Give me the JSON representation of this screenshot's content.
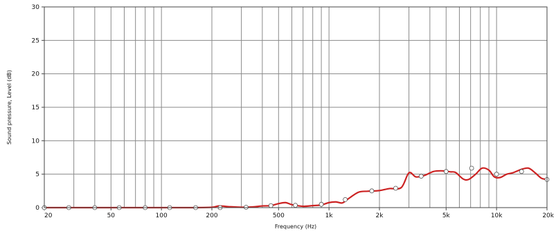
{
  "chart_data": {
    "type": "line",
    "xscale": "log",
    "xlabel": "Frequency  (Hz)",
    "ylabel": "Sound pressure, Level  (dB)",
    "xlim": [
      20,
      20000
    ],
    "ylim": [
      0,
      30
    ],
    "grid": true,
    "x_ticks": [
      {
        "value": 20,
        "label": "20"
      },
      {
        "value": 50,
        "label": "50"
      },
      {
        "value": 100,
        "label": "100"
      },
      {
        "value": 200,
        "label": "200"
      },
      {
        "value": 500,
        "label": "500"
      },
      {
        "value": 1000,
        "label": "1k"
      },
      {
        "value": 2000,
        "label": "2k"
      },
      {
        "value": 5000,
        "label": "5k"
      },
      {
        "value": 10000,
        "label": "10k"
      },
      {
        "value": 20000,
        "label": "20k"
      }
    ],
    "y_ticks": [
      0,
      5,
      10,
      15,
      20,
      25,
      30
    ],
    "series": [
      {
        "color": "#cc2222",
        "marker_color": "#ffffff",
        "x": [
          20,
          25,
          30,
          40,
          50,
          60,
          80,
          100,
          150,
          200,
          220,
          250,
          300,
          350,
          400,
          450,
          500,
          550,
          600,
          700,
          800,
          900,
          1000,
          1100,
          1200,
          1300,
          1500,
          1700,
          2000,
          2300,
          2700,
          3000,
          3300,
          3700,
          4200,
          4700,
          5300,
          5700,
          6300,
          6800,
          7500,
          8200,
          9000,
          9700,
          10500,
          11500,
          12500,
          14000,
          15500,
          17000,
          18500,
          20000
        ],
        "values": [
          0,
          0,
          0,
          0,
          0,
          0,
          0,
          0,
          0,
          0.05,
          0.25,
          0.15,
          0.05,
          0.1,
          0.25,
          0.3,
          0.6,
          0.75,
          0.45,
          0.2,
          0.3,
          0.4,
          0.75,
          0.85,
          0.7,
          1.3,
          2.3,
          2.45,
          2.55,
          2.85,
          3.0,
          5.2,
          4.6,
          4.8,
          5.4,
          5.5,
          5.35,
          5.25,
          4.3,
          4.2,
          5.0,
          5.9,
          5.6,
          4.6,
          4.5,
          5.0,
          5.2,
          5.7,
          5.9,
          5.2,
          4.4,
          4.2
        ],
        "markers_x": [
          20,
          28,
          40,
          56,
          80,
          112,
          160,
          224,
          320,
          450,
          630,
          900,
          1250,
          1800,
          2500,
          3550,
          5000,
          7100,
          10000,
          14100,
          20000
        ],
        "markers_y": [
          0,
          0,
          0,
          0,
          0,
          0,
          0,
          0,
          0.05,
          0.3,
          0.35,
          0.5,
          1.2,
          2.5,
          2.9,
          4.7,
          5.4,
          5.9,
          5.0,
          5.4,
          4.2
        ]
      }
    ]
  }
}
